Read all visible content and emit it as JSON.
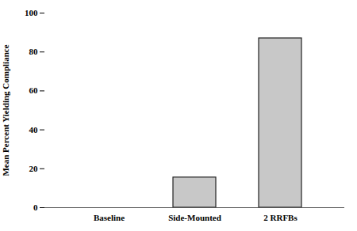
{
  "chart_data": {
    "type": "bar",
    "categories": [
      "Baseline",
      "Side-Mounted",
      "2 RRFBs"
    ],
    "values": [
      0,
      15.5,
      87.0
    ],
    "color": "#c8c8c8",
    "ylabel": "Mean Percent Yielding Compliance",
    "ylim": [
      0,
      100
    ],
    "yticks": [
      0,
      20,
      40,
      60,
      80,
      100
    ],
    "grid": false
  }
}
